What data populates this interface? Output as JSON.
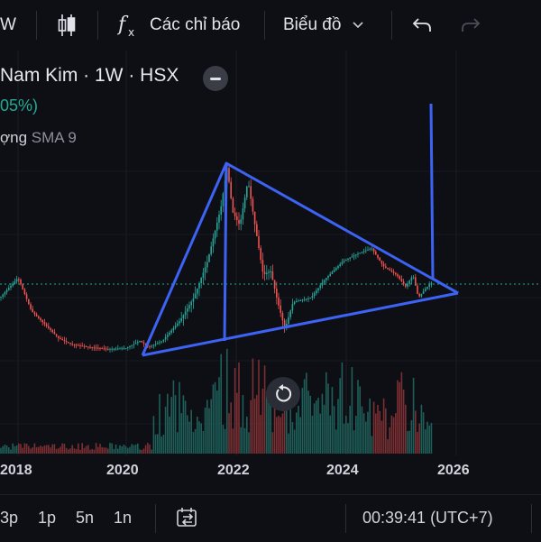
{
  "toolbar": {
    "interval_label": "W",
    "indicators_label": "Các chỉ báo",
    "chart_type_label": "Biểu đồ"
  },
  "legend": {
    "title": "Nam Kim · 1W · HSX",
    "change": "05%)",
    "volume_prefix": "ợng",
    "sma_label": "SMA 9"
  },
  "xaxis": {
    "labels": [
      "2018",
      "2020",
      "2022",
      "2024",
      "2026"
    ]
  },
  "bottom": {
    "range_options": [
      "3p",
      "1p",
      "5n",
      "1n"
    ],
    "clock": "00:39:41 (UTC+7)"
  },
  "colors": {
    "background": "#0e0f14",
    "up": "#26a69a",
    "down": "#ef5350",
    "drawing": "#3d63f5",
    "dotted_price_line": "#22ab94"
  },
  "icons": [
    "candles-icon",
    "fx-icon",
    "chevron-down-icon",
    "undo-icon",
    "redo-icon",
    "minus-icon",
    "reset-icon",
    "compare-range-icon"
  ]
}
